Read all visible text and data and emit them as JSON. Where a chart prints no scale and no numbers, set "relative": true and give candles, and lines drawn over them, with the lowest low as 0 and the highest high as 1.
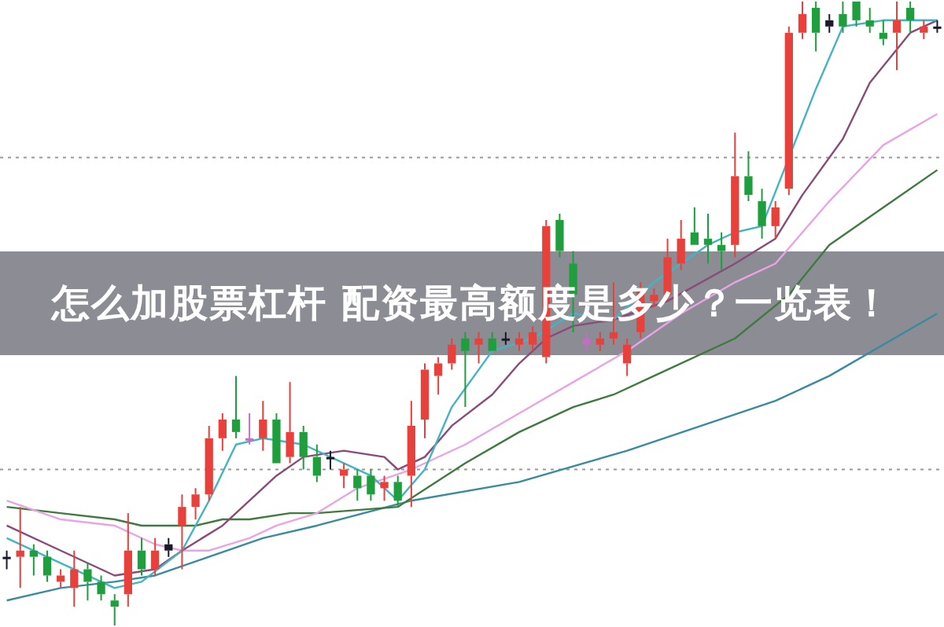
{
  "chart_data": {
    "type": "candlestick",
    "title": "怎么加股票杠杆 配资最高额度是多少？一览表！",
    "relative": true,
    "categories": [
      null,
      null,
      null,
      null,
      null,
      null,
      null,
      null,
      null,
      null,
      null,
      null,
      null,
      null,
      null,
      null,
      null,
      null,
      null,
      null,
      null,
      null,
      null,
      null,
      null,
      null,
      null,
      null,
      null,
      null,
      null,
      null,
      null,
      null,
      null,
      null,
      null,
      null,
      null,
      null,
      null,
      null,
      null,
      null,
      null,
      null,
      null,
      null,
      null,
      null,
      null,
      null,
      null,
      null,
      null,
      null,
      null,
      null,
      null,
      null,
      null,
      null,
      null,
      null,
      null,
      null,
      null,
      null,
      null,
      null
    ],
    "ohlc": [
      [
        0.11,
        0.12,
        0.09,
        0.11
      ],
      [
        0.11,
        0.19,
        0.06,
        0.12
      ],
      [
        0.12,
        0.13,
        0.08,
        0.11
      ],
      [
        0.11,
        0.12,
        0.07,
        0.08
      ],
      [
        0.07,
        0.09,
        0.06,
        0.08
      ],
      [
        0.06,
        0.12,
        0.03,
        0.09
      ],
      [
        0.09,
        0.1,
        0.04,
        0.07
      ],
      [
        0.07,
        0.08,
        0.04,
        0.05
      ],
      [
        0.04,
        0.05,
        0,
        0.03
      ],
      [
        0.05,
        0.18,
        0.03,
        0.12
      ],
      [
        0.12,
        0.14,
        0.08,
        0.09
      ],
      [
        0.09,
        0.14,
        0.08,
        0.12
      ],
      [
        0.12,
        0.14,
        0.11,
        0.13
      ],
      [
        0.16,
        0.21,
        0.09,
        0.19
      ],
      [
        0.19,
        0.22,
        0.17,
        0.21
      ],
      [
        0.21,
        0.32,
        0.2,
        0.3
      ],
      [
        0.3,
        0.34,
        0.28,
        0.33
      ],
      [
        0.33,
        0.4,
        0.3,
        0.31
      ],
      [
        0.3,
        0.34,
        0.29,
        0.3
      ],
      [
        0.3,
        0.36,
        0.28,
        0.33
      ],
      [
        0.33,
        0.34,
        0.26,
        0.26
      ],
      [
        0.27,
        0.39,
        0.26,
        0.31
      ],
      [
        0.31,
        0.32,
        0.25,
        0.27
      ],
      [
        0.27,
        0.29,
        0.23,
        0.24
      ],
      [
        0.27,
        0.28,
        0.25,
        0.27
      ],
      [
        0.24,
        0.26,
        0.22,
        0.25
      ],
      [
        0.24,
        0.25,
        0.2,
        0.22
      ],
      [
        0.24,
        0.25,
        0.2,
        0.21
      ],
      [
        0.22,
        0.24,
        0.2,
        0.23
      ],
      [
        0.23,
        0.24,
        0.19,
        0.2
      ],
      [
        0.24,
        0.36,
        0.19,
        0.32
      ],
      [
        0.33,
        0.42,
        0.3,
        0.41
      ],
      [
        0.4,
        0.43,
        0.37,
        0.42
      ],
      [
        0.42,
        0.46,
        0.41,
        0.45
      ],
      [
        0.46,
        0.47,
        0.35,
        0.44
      ],
      [
        0.45,
        0.47,
        0.42,
        0.46
      ],
      [
        0.46,
        0.47,
        0.44,
        0.44
      ],
      [
        0.46,
        0.47,
        0.45,
        0.46
      ],
      [
        0.45,
        0.47,
        0.44,
        0.46
      ],
      [
        0.45,
        0.48,
        0.44,
        0.47
      ],
      [
        0.43,
        0.65,
        0.42,
        0.64
      ],
      [
        0.65,
        0.66,
        0.59,
        0.6
      ],
      [
        0.58,
        0.6,
        0.47,
        0.53
      ],
      [
        0.45,
        0.47,
        0.44,
        0.46
      ],
      [
        0.45,
        0.47,
        0.44,
        0.46
      ],
      [
        0.46,
        0.55,
        0.45,
        0.47
      ],
      [
        0.42,
        0.46,
        0.4,
        0.45
      ],
      [
        0.47,
        0.55,
        0.46,
        0.54
      ],
      [
        0.52,
        0.54,
        0.51,
        0.53
      ],
      [
        0.53,
        0.62,
        0.52,
        0.59
      ],
      [
        0.58,
        0.65,
        0.57,
        0.62
      ],
      [
        0.63,
        0.67,
        0.61,
        0.61
      ],
      [
        0.62,
        0.66,
        0.58,
        0.61
      ],
      [
        0.61,
        0.63,
        0.57,
        0.6
      ],
      [
        0.61,
        0.79,
        0.59,
        0.72
      ],
      [
        0.72,
        0.76,
        0.68,
        0.69
      ],
      [
        0.68,
        0.7,
        0.62,
        0.64
      ],
      [
        0.64,
        0.68,
        0.62,
        0.67
      ],
      [
        0.7,
        0.96,
        0.69,
        0.95
      ],
      [
        0.95,
        1,
        0.94,
        0.98
      ],
      [
        0.99,
        1,
        0.92,
        0.95
      ],
      [
        0.96,
        0.98,
        0.95,
        0.97
      ],
      [
        0.98,
        1,
        0.95,
        0.96
      ],
      [
        1,
        1,
        0.96,
        0.97
      ],
      [
        0.97,
        0.99,
        0.95,
        0.96
      ],
      [
        0.95,
        0.97,
        0.93,
        0.94
      ],
      [
        0.95,
        1,
        0.89,
        0.97
      ],
      [
        0.99,
        1,
        0.95,
        0.97
      ],
      [
        0.95,
        0.97,
        0.94,
        0.96
      ],
      [
        0.96,
        0.97,
        0.95,
        0.96
      ]
    ],
    "colors": [
      "#1a1a2a",
      "#e8413c",
      "#1e9e3c",
      "#1e9e3c",
      "#e8413c",
      "#e8413c",
      "#1e9e3c",
      "#1e9e3c",
      "#1e9e3c",
      "#e8413c",
      "#1e9e3c",
      "#e8413c",
      "#1a1a2a",
      "#e8413c",
      "#e8413c",
      "#e8413c",
      "#e8413c",
      "#1e9e3c",
      "#c070c0",
      "#e8413c",
      "#1e9e3c",
      "#e8413c",
      "#1e9e3c",
      "#1e9e3c",
      "#1a1a2a",
      "#e8413c",
      "#1e9e3c",
      "#1e9e3c",
      "#e8413c",
      "#1e9e3c",
      "#e8413c",
      "#e8413c",
      "#e8413c",
      "#e8413c",
      "#1e9e3c",
      "#e8413c",
      "#1e9e3c",
      "#1a1a2a",
      "#e8413c",
      "#e8413c",
      "#e8413c",
      "#1e9e3c",
      "#1e9e3c",
      "#c070c0",
      "#e8413c",
      "#e8413c",
      "#e8413c",
      "#e8413c",
      "#e8413c",
      "#e8413c",
      "#e8413c",
      "#1e9e3c",
      "#1e9e3c",
      "#1e9e3c",
      "#e8413c",
      "#1e9e3c",
      "#1e9e3c",
      "#e8413c",
      "#e8413c",
      "#e8413c",
      "#1e9e3c",
      "#1a1a2a",
      "#1e9e3c",
      "#1e9e3c",
      "#1e9e3c",
      "#1e9e3c",
      "#e8413c",
      "#1e9e3c",
      "#e8413c",
      "#1a1a2a"
    ],
    "series": [
      {
        "type": "line",
        "color": "#44b4c4",
        "values": [
          0.14,
          null,
          null,
          null,
          null,
          0.09,
          null,
          null,
          0.06,
          null,
          0.07,
          null,
          null,
          0.12,
          null,
          0.2,
          null,
          0.29,
          null,
          0.3,
          null,
          null,
          0.29,
          null,
          0.27,
          null,
          null,
          0.24,
          null,
          0.2,
          null,
          0.25,
          null,
          0.35,
          null,
          null,
          0.44,
          null,
          null,
          0.46,
          null,
          null,
          0.5,
          null,
          null,
          0.49,
          null,
          null,
          0.55,
          null,
          0.58,
          null,
          0.61,
          null,
          0.63,
          null,
          0.64,
          null,
          null,
          null,
          0.86,
          null,
          0.96,
          null,
          null,
          0.97,
          null,
          null,
          null,
          0.97
        ]
      },
      {
        "type": "line",
        "color": "#8a4a7a",
        "values": [
          0.16,
          null,
          null,
          null,
          0.12,
          null,
          null,
          null,
          0.08,
          null,
          null,
          0.09,
          null,
          0.12,
          null,
          null,
          0.16,
          null,
          0.2,
          null,
          0.24,
          null,
          0.27,
          null,
          null,
          0.28,
          null,
          null,
          0.27,
          0.25,
          null,
          0.27,
          null,
          0.32,
          null,
          null,
          0.37,
          null,
          0.42,
          null,
          0.46,
          null,
          0.48,
          null,
          null,
          0.49,
          null,
          null,
          null,
          0.52,
          null,
          null,
          null,
          null,
          0.58,
          null,
          null,
          0.62,
          null,
          0.69,
          null,
          null,
          0.78,
          null,
          0.87,
          null,
          null,
          0.95,
          null,
          0.97
        ]
      },
      {
        "type": "line",
        "color": "#eaa4e6",
        "values": [
          0.2,
          null,
          null,
          null,
          0.17,
          null,
          null,
          null,
          0.16,
          null,
          null,
          0.13,
          null,
          0.12,
          null,
          0.12,
          null,
          null,
          0.14,
          null,
          0.16,
          null,
          null,
          0.18,
          null,
          null,
          0.22,
          null,
          null,
          null,
          0.25,
          null,
          null,
          null,
          0.29,
          null,
          null,
          null,
          0.34,
          null,
          null,
          null,
          0.39,
          null,
          null,
          null,
          0.44,
          null,
          null,
          null,
          0.5,
          null,
          null,
          null,
          0.55,
          null,
          null,
          0.58,
          null,
          null,
          null,
          0.68,
          null,
          null,
          null,
          0.77,
          null,
          null,
          null,
          0.82
        ]
      },
      {
        "type": "line",
        "color": "#3f7a3f",
        "values": [
          0.19,
          null,
          null,
          null,
          0.18,
          null,
          null,
          null,
          0.17,
          null,
          0.16,
          null,
          null,
          null,
          0.16,
          null,
          0.17,
          null,
          0.17,
          null,
          null,
          0.18,
          null,
          0.18,
          null,
          null,
          null,
          null,
          null,
          0.19,
          null,
          null,
          null,
          null,
          0.26,
          null,
          null,
          null,
          0.31,
          null,
          null,
          null,
          0.35,
          null,
          null,
          0.37,
          null,
          null,
          0.4,
          null,
          null,
          null,
          null,
          null,
          0.46,
          null,
          null,
          null,
          0.53,
          null,
          null,
          0.61,
          null,
          null,
          null,
          0.67,
          null,
          null,
          null,
          0.73
        ]
      },
      {
        "type": "line",
        "color": "#3a8aa0",
        "values": [
          0.04,
          null,
          null,
          null,
          0.06,
          null,
          null,
          null,
          0.07,
          null,
          null,
          0.08,
          null,
          null,
          null,
          0.11,
          null,
          null,
          null,
          0.14,
          null,
          null,
          null,
          0.16,
          null,
          null,
          null,
          null,
          null,
          null,
          0.2,
          null,
          null,
          null,
          null,
          null,
          null,
          null,
          0.23,
          null,
          null,
          null,
          null,
          null,
          null,
          null,
          0.28,
          null,
          null,
          null,
          null,
          null,
          null,
          null,
          null,
          null,
          null,
          0.36,
          null,
          null,
          null,
          0.4,
          null,
          null,
          null,
          null,
          null,
          null,
          null,
          0.5
        ]
      }
    ],
    "ref_lines": [
      {
        "axis": "y",
        "value": 0.75,
        "color": "#999999",
        "line_style": "dotted"
      },
      {
        "axis": "y",
        "value": 0.25,
        "color": "#999999",
        "line_style": "dotted"
      }
    ]
  }
}
